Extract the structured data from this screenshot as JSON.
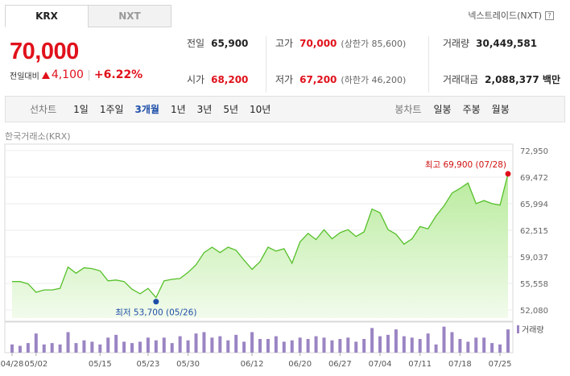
{
  "tabs": [
    {
      "label": "KRX"
    },
    {
      "label": "NXT"
    }
  ],
  "nxt_link": "넥스트레이드(NXT)",
  "price": "70,000",
  "change": {
    "label": "전일대비",
    "amount": "4,100",
    "rate": "+6.22%"
  },
  "quote": {
    "prev_close": {
      "label": "전일",
      "value": "65,900"
    },
    "open": {
      "label": "시가",
      "value": "68,200"
    },
    "high": {
      "label": "고가",
      "value": "70,000",
      "sub": "(상한가 85,600)"
    },
    "low": {
      "label": "저가",
      "value": "67,200",
      "sub": "(하한가 46,200)"
    },
    "volume": {
      "label": "거래량",
      "value": "30,449,581"
    },
    "trade_value": {
      "label": "거래대금",
      "value": "2,088,377 백만"
    }
  },
  "period_bar": {
    "line_title": "선차트",
    "line_items": [
      "1일",
      "1주일",
      "3개월",
      "1년",
      "3년",
      "5년",
      "10년"
    ],
    "active": "3개월",
    "candle_title": "봉차트",
    "candle_items": [
      "일봉",
      "주봉",
      "월봉"
    ]
  },
  "source_label": "한국거래소(KRX)",
  "colors": {
    "accent_red": "#e0111b",
    "active_blue": "#1e4fa8",
    "line_green": "#55c02a",
    "volume_purple": "#9b85c4"
  },
  "chart_data": {
    "type": "area",
    "y_ticks": [
      "72,950",
      "69,472",
      "65,994",
      "62,515",
      "59,037",
      "55,558",
      "52,080"
    ],
    "ylim": [
      52080,
      72950
    ],
    "x_ticks": [
      "04/28",
      "05/02",
      "05/15",
      "05/23",
      "05/30",
      "06/12",
      "06/20",
      "06/27",
      "07/04",
      "07/11",
      "07/18",
      "07/25"
    ],
    "x_tick_index": [
      0,
      3,
      11,
      17,
      22,
      30,
      36,
      41,
      46,
      51,
      56,
      61
    ],
    "series": [
      {
        "values": [
          55800,
          55800,
          55500,
          54400,
          54700,
          54700,
          54900,
          57700,
          56900,
          57600,
          57500,
          57200,
          55900,
          56000,
          55800,
          54800,
          54200,
          54900,
          53700,
          55900,
          56100,
          56200,
          57000,
          58000,
          59600,
          60300,
          59600,
          60300,
          59900,
          58600,
          57400,
          58400,
          60300,
          59800,
          60100,
          58200,
          61000,
          62100,
          61300,
          62600,
          61400,
          62200,
          62600,
          61700,
          62300,
          65300,
          64800,
          62600,
          62000,
          60700,
          61400,
          63000,
          62700,
          64400,
          65700,
          67400,
          68000,
          68700,
          66000,
          66400,
          66000,
          65800,
          69900
        ]
      }
    ],
    "max_annotation": {
      "text": "최고 69,900 (07/28)",
      "index": 62
    },
    "min_annotation": {
      "text": "최저 53,700 (05/26)",
      "index": 18
    },
    "volume_label": "거래량",
    "volume": [
      0.3,
      0.25,
      0.35,
      0.7,
      0.3,
      0.35,
      0.3,
      0.75,
      0.35,
      0.45,
      0.4,
      0.3,
      0.55,
      0.65,
      0.4,
      0.35,
      0.4,
      0.55,
      0.45,
      0.55,
      0.35,
      0.6,
      0.45,
      0.7,
      0.75,
      0.55,
      0.6,
      0.45,
      0.65,
      0.4,
      0.75,
      0.5,
      0.5,
      0.6,
      0.4,
      0.45,
      0.55,
      0.5,
      0.6,
      0.55,
      0.45,
      0.5,
      0.55,
      0.4,
      0.5,
      0.9,
      0.6,
      0.65,
      0.85,
      0.6,
      0.55,
      0.5,
      0.7,
      0.3,
      0.95,
      0.75,
      0.5,
      0.4,
      0.55,
      0.55,
      0.35,
      0.3,
      0.85
    ]
  }
}
